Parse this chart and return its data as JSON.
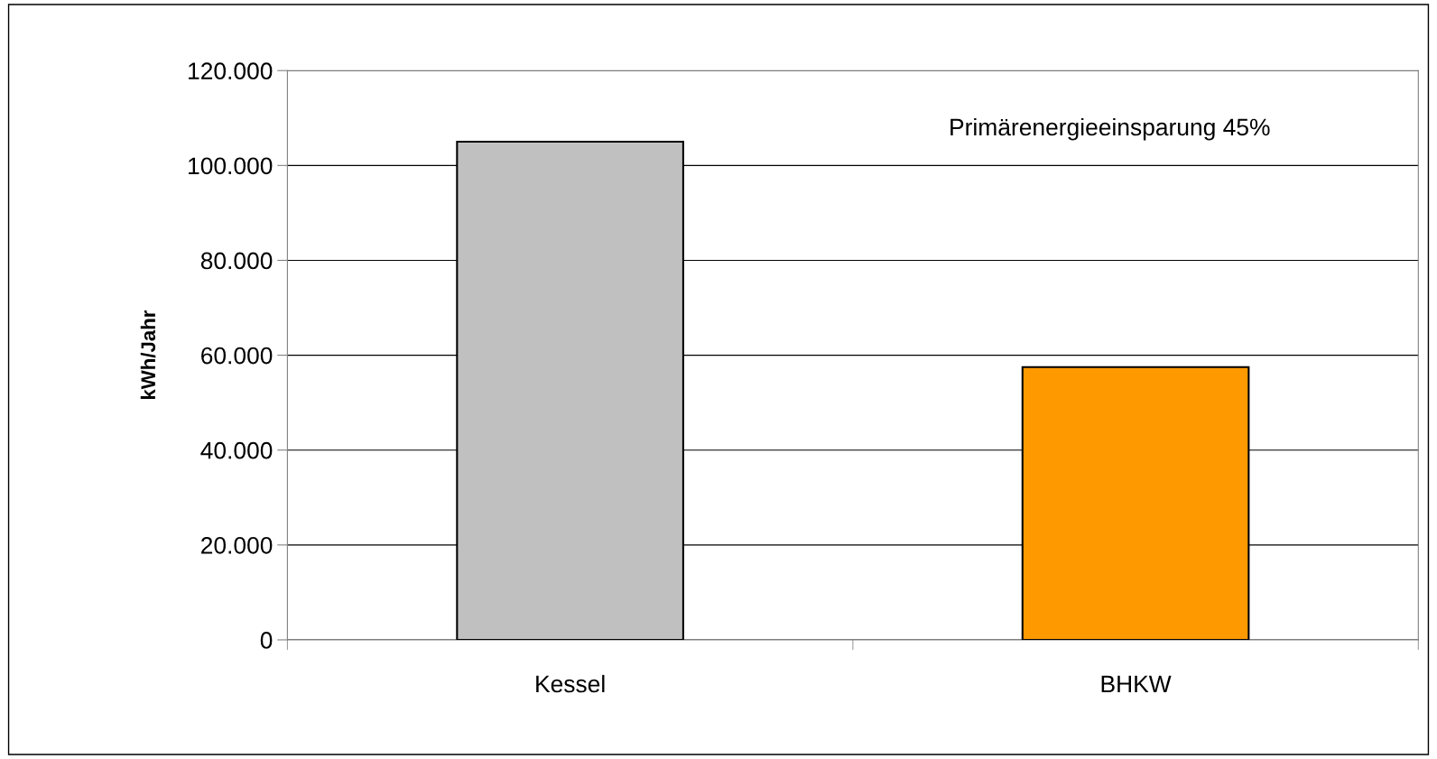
{
  "chart_data": {
    "type": "bar",
    "ylabel": "kWh/Jahr",
    "categories": [
      "Kessel",
      "BHKW"
    ],
    "values": [
      105000,
      57500
    ],
    "colors": [
      "#c0c0c0",
      "#ff9900"
    ],
    "ylim": [
      0,
      120000
    ],
    "yticks": [
      {
        "value": 0,
        "label": "0"
      },
      {
        "value": 20000,
        "label": "20.000"
      },
      {
        "value": 40000,
        "label": "40.000"
      },
      {
        "value": 60000,
        "label": "60.000"
      },
      {
        "value": 80000,
        "label": "80.000"
      },
      {
        "value": 100000,
        "label": "100.000"
      },
      {
        "value": 120000,
        "label": "120.000"
      }
    ],
    "grid": "y",
    "annotations": [
      "Primärenergieeinsparung 45%"
    ]
  }
}
